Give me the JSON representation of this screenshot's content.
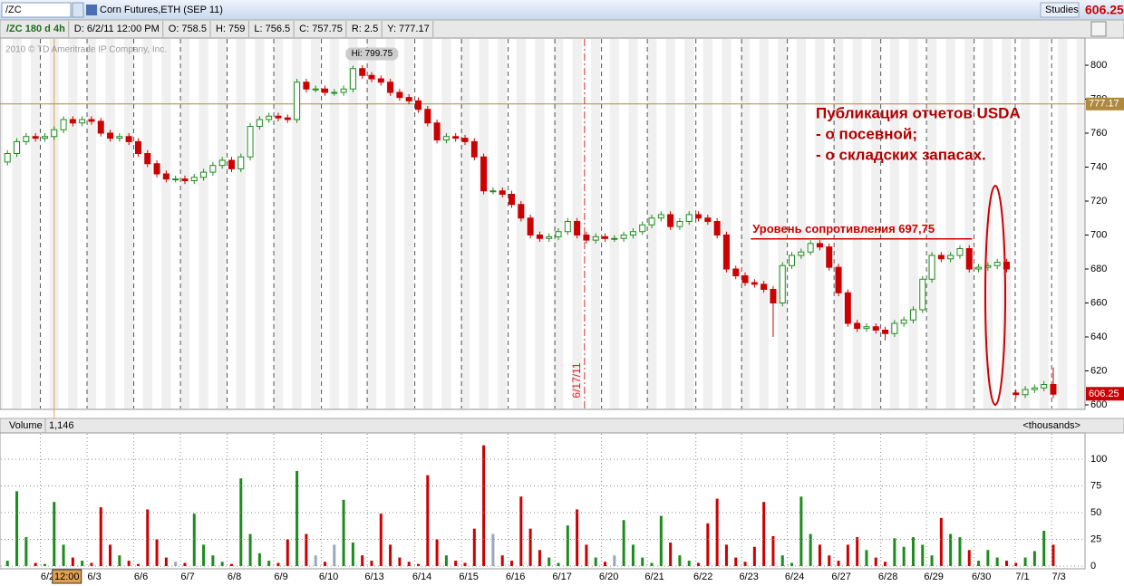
{
  "header": {
    "symbol": "/ZC",
    "instrument": "Corn Futures,ETH (SEP 11)",
    "studies": "Studies",
    "info": [
      "/ZC 180 d 4h",
      "D: 6/2/11 12:00 PM",
      "O: 758.5",
      "H: 759",
      "L: 756.5",
      "C: 757.75",
      "R: 2.5",
      "Y: 777.17"
    ],
    "copyright": "2010 © TD Ameritrade IP Company, Inc."
  },
  "chart_data": [
    {
      "type": "candlestick",
      "x": [
        0,
        1,
        2,
        3,
        4,
        5,
        6,
        7,
        8,
        9,
        10,
        11,
        12,
        13,
        14,
        15,
        16,
        17,
        18,
        19,
        20,
        21,
        22,
        23,
        24,
        25,
        26,
        27,
        28,
        29,
        30,
        31,
        32,
        33,
        34,
        35,
        36,
        37,
        38,
        39,
        40,
        41,
        42,
        43,
        44,
        45,
        46,
        47,
        48,
        49,
        50,
        51,
        52,
        53,
        54,
        55,
        56,
        57,
        58,
        59,
        60,
        61,
        62,
        63,
        64,
        65,
        66,
        67,
        68,
        69,
        70,
        71,
        72,
        73,
        74,
        75,
        76,
        77,
        78,
        79,
        80,
        81,
        82,
        83,
        84,
        85,
        86,
        87,
        88,
        89,
        90,
        91,
        92,
        93,
        94,
        95,
        96,
        97,
        98,
        99,
        100,
        101,
        102,
        103,
        104,
        105,
        106,
        107,
        108,
        109,
        110,
        111,
        112
      ],
      "open": [
        743,
        748,
        755,
        758,
        757,
        758,
        762,
        768,
        766,
        768,
        767,
        760,
        757,
        758,
        755,
        748,
        742,
        736,
        733,
        733,
        732,
        734,
        737,
        741,
        744,
        739,
        746,
        764,
        768,
        770,
        769,
        768,
        790,
        786,
        786,
        784,
        784,
        786,
        798,
        794,
        792,
        790,
        784,
        781,
        779,
        774,
        766,
        756,
        758,
        757,
        755,
        746,
        726,
        726,
        724,
        718,
        710,
        700,
        698,
        699,
        702,
        708,
        700,
        697,
        699,
        698,
        698,
        700,
        702,
        706,
        710,
        712,
        705,
        708,
        712,
        710,
        708,
        700,
        680,
        676,
        672,
        671,
        668,
        660,
        682,
        688,
        690,
        695,
        693,
        681,
        666,
        648,
        645,
        646,
        644,
        642,
        648,
        650,
        656,
        674,
        688,
        686,
        688,
        692,
        680,
        681,
        682,
        684,
        607,
        606,
        609,
        610,
        612
      ],
      "high": [
        750,
        757,
        760,
        760,
        760,
        764,
        770,
        770,
        770,
        770,
        769,
        762,
        760,
        760,
        757,
        750,
        744,
        738,
        735,
        735,
        736,
        739,
        743,
        746,
        746,
        748,
        766,
        770,
        772,
        772,
        771,
        792,
        792,
        788,
        788,
        786,
        788,
        799.75,
        800,
        796,
        794,
        792,
        786,
        783,
        781,
        776,
        768,
        760,
        760,
        759,
        757,
        748,
        728,
        728,
        726,
        720,
        712,
        702,
        701,
        704,
        710,
        710,
        702,
        701,
        701,
        700,
        702,
        704,
        708,
        712,
        714,
        714,
        710,
        714,
        714,
        712,
        710,
        702,
        682,
        678,
        674,
        673,
        670,
        684,
        690,
        692,
        697,
        697,
        695,
        683,
        668,
        650,
        648,
        648,
        646,
        650,
        652,
        658,
        676,
        690,
        690,
        690,
        694,
        694,
        683,
        684,
        686,
        686,
        609,
        611,
        612,
        614,
        622
      ],
      "low": [
        741,
        746,
        753,
        755,
        755,
        756,
        760,
        764,
        764,
        765,
        758,
        755,
        755,
        753,
        746,
        740,
        734,
        731,
        731,
        730,
        730,
        732,
        735,
        739,
        737,
        737,
        744,
        762,
        766,
        767,
        766,
        766,
        784,
        784,
        782,
        782,
        782,
        784,
        792,
        790,
        788,
        782,
        779,
        777,
        772,
        764,
        754,
        754,
        755,
        753,
        744,
        724,
        724,
        722,
        716,
        708,
        698,
        696,
        696,
        697,
        700,
        698,
        695,
        695,
        696,
        696,
        696,
        698,
        700,
        704,
        708,
        703,
        703,
        706,
        708,
        706,
        698,
        678,
        674,
        670,
        669,
        666,
        640,
        658,
        680,
        686,
        688,
        691,
        679,
        664,
        646,
        643,
        643,
        642,
        638,
        640,
        646,
        648,
        654,
        672,
        684,
        684,
        686,
        678,
        678,
        679,
        680,
        678,
        604,
        604,
        607,
        608,
        604
      ],
      "close": [
        748,
        755,
        758,
        757,
        758,
        762,
        768,
        766,
        768,
        767,
        760,
        757,
        758,
        755,
        748,
        742,
        736,
        733,
        733,
        732,
        734,
        737,
        741,
        744,
        739,
        746,
        764,
        768,
        770,
        769,
        768,
        790,
        786,
        786,
        784,
        784,
        786,
        798,
        794,
        792,
        790,
        784,
        781,
        779,
        774,
        766,
        756,
        758,
        757,
        755,
        746,
        726,
        726,
        724,
        718,
        710,
        700,
        698,
        699,
        702,
        708,
        700,
        697,
        699,
        698,
        698,
        700,
        702,
        706,
        710,
        712,
        705,
        708,
        712,
        710,
        708,
        700,
        680,
        676,
        672,
        671,
        668,
        660,
        682,
        688,
        690,
        695,
        693,
        681,
        666,
        648,
        645,
        646,
        644,
        642,
        648,
        650,
        656,
        674,
        688,
        686,
        688,
        692,
        680,
        681,
        682,
        684,
        680,
        606,
        609,
        610,
        612,
        606.25
      ],
      "up_color": "#1c8c1c",
      "down_color": "#cc0000",
      "xlim": [
        -0.8,
        115.4
      ],
      "ylim": [
        598.4,
        814.4
      ],
      "yticks": [
        600,
        620,
        640,
        660,
        680,
        700,
        720,
        740,
        760,
        780,
        800
      ],
      "xticks": [
        {
          "value": 4.3,
          "label": "6/2"
        },
        {
          "value": 9.3,
          "label": "6/3"
        },
        {
          "value": 14.3,
          "label": "6/6"
        },
        {
          "value": 19.3,
          "label": "6/7"
        },
        {
          "value": 24.3,
          "label": "6/8"
        },
        {
          "value": 29.3,
          "label": "6/9"
        },
        {
          "value": 34.4,
          "label": "6/10"
        },
        {
          "value": 39.3,
          "label": "6/13"
        },
        {
          "value": 44.4,
          "label": "6/14"
        },
        {
          "value": 49.4,
          "label": "6/15"
        },
        {
          "value": 54.4,
          "label": "6/16"
        },
        {
          "value": 59.4,
          "label": "6/17"
        },
        {
          "value": 64.4,
          "label": "6/20"
        },
        {
          "value": 69.3,
          "label": "6/21"
        },
        {
          "value": 74.5,
          "label": "6/22"
        },
        {
          "value": 79.4,
          "label": "6/23"
        },
        {
          "value": 84.3,
          "label": "6/24"
        },
        {
          "value": 89.3,
          "label": "6/27"
        },
        {
          "value": 94.3,
          "label": "6/28"
        },
        {
          "value": 99.2,
          "label": "6/29"
        },
        {
          "value": 104.3,
          "label": "6/30"
        },
        {
          "value": 108.7,
          "label": "7/1"
        },
        {
          "value": 112.6,
          "label": "7/3"
        }
      ],
      "reference_line": {
        "value": 777.17,
        "label": "777.17",
        "color": "#b08a3c"
      },
      "last": {
        "value": 606.25,
        "label": "606.25",
        "color": "#cc0000"
      },
      "high_label": {
        "x": 37,
        "value": 799.75,
        "label": "Hi: 799.75"
      },
      "resistance": {
        "value": 697.75,
        "x": [
          79.6,
          103.3
        ],
        "label": "Уровень сопротивления 697,75",
        "color": "#cc0000"
      },
      "event_line": {
        "x": 61.8,
        "label": "6/17/11",
        "color": "#dd2222"
      },
      "cursor": {
        "x": 5.0,
        "label": "12:00",
        "color": "#e0a050"
      },
      "annotation": [
        "Публикация отчетов USDA",
        "- о посевной;",
        "- о складских запасах."
      ]
    },
    {
      "type": "bar",
      "title": "Volume",
      "last_label": "1,146",
      "unit_label": "<thousands>",
      "x": [
        0,
        1,
        2,
        3,
        4,
        5,
        6,
        7,
        8,
        9,
        10,
        11,
        12,
        13,
        14,
        15,
        16,
        17,
        18,
        19,
        20,
        21,
        22,
        23,
        24,
        25,
        26,
        27,
        28,
        29,
        30,
        31,
        32,
        33,
        34,
        35,
        36,
        37,
        38,
        39,
        40,
        41,
        42,
        43,
        44,
        45,
        46,
        47,
        48,
        49,
        50,
        51,
        52,
        53,
        54,
        55,
        56,
        57,
        58,
        59,
        60,
        61,
        62,
        63,
        64,
        65,
        66,
        67,
        68,
        69,
        70,
        71,
        72,
        73,
        74,
        75,
        76,
        77,
        78,
        79,
        80,
        81,
        82,
        83,
        84,
        85,
        86,
        87,
        88,
        89,
        90,
        91,
        92,
        93,
        94,
        95,
        96,
        97,
        98,
        99,
        100,
        101,
        102,
        103,
        104,
        105,
        106,
        107,
        108,
        109,
        110,
        111,
        112
      ],
      "values": [
        5,
        70,
        27,
        3,
        2,
        60,
        20,
        8,
        5,
        3,
        55,
        20,
        10,
        5,
        2,
        53,
        25,
        8,
        4,
        3,
        49,
        20,
        10,
        4,
        2,
        82,
        30,
        12,
        5,
        3,
        25,
        89,
        30,
        10,
        4,
        20,
        62,
        22,
        10,
        5,
        49,
        20,
        8,
        4,
        2,
        85,
        25,
        10,
        5,
        3,
        35,
        113,
        30,
        10,
        5,
        65,
        35,
        15,
        8,
        3,
        38,
        53,
        20,
        8,
        4,
        10,
        43,
        20,
        8,
        3,
        47,
        22,
        10,
        5,
        3,
        40,
        63,
        20,
        8,
        4,
        18,
        60,
        28,
        10,
        3,
        65,
        30,
        20,
        10,
        5,
        20,
        27,
        15,
        8,
        4,
        26,
        18,
        27,
        20,
        10,
        45,
        30,
        27,
        15,
        5,
        15,
        8,
        5,
        3,
        8,
        14,
        33,
        20
      ],
      "flat_color": "#99a8b8",
      "xlim": [
        -0.8,
        115.4
      ],
      "ylim": [
        0,
        122
      ],
      "yticks": [
        0,
        25,
        50,
        75,
        100
      ],
      "grid": true
    }
  ]
}
